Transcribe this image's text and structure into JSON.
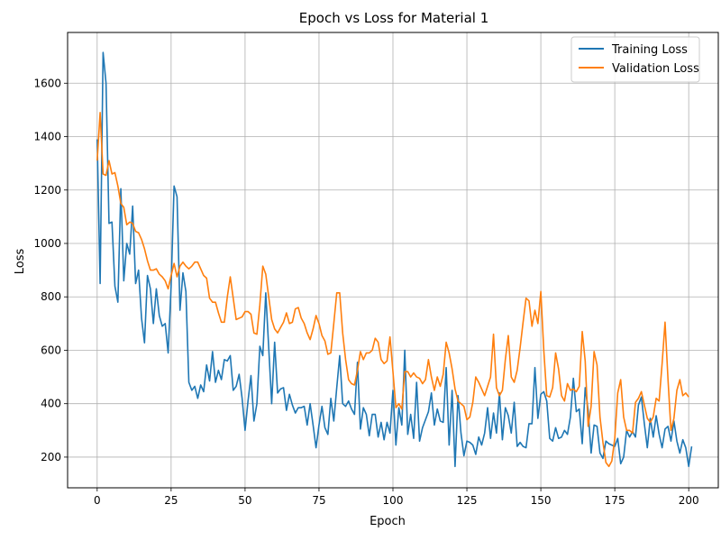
{
  "chart_data": {
    "type": "line",
    "title": "Epoch vs Loss for Material 1",
    "xlabel": "Epoch",
    "ylabel": "Loss",
    "xlim": [
      -10,
      210
    ],
    "ylim": [
      85,
      1790
    ],
    "xticks": [
      0,
      25,
      50,
      75,
      100,
      125,
      150,
      175,
      200
    ],
    "yticks": [
      200,
      400,
      600,
      800,
      1000,
      1200,
      1400,
      1600
    ],
    "grid": true,
    "legend": "top-right",
    "series": [
      {
        "name": "Training Loss",
        "color": "#1f77b4",
        "values": [
          1390,
          850,
          1715,
          1600,
          1075,
          1080,
          840,
          780,
          1205,
          860,
          1000,
          960,
          1140,
          850,
          900,
          720,
          628,
          880,
          830,
          700,
          830,
          730,
          690,
          700,
          590,
          840,
          1215,
          1175,
          750,
          890,
          820,
          480,
          450,
          465,
          420,
          470,
          445,
          545,
          485,
          595,
          480,
          525,
          490,
          565,
          560,
          580,
          450,
          465,
          510,
          420,
          300,
          410,
          505,
          335,
          400,
          615,
          580,
          815,
          610,
          400,
          630,
          440,
          455,
          460,
          375,
          435,
          395,
          365,
          385,
          385,
          390,
          320,
          400,
          320,
          235,
          320,
          390,
          310,
          285,
          420,
          335,
          460,
          580,
          400,
          390,
          410,
          380,
          360,
          555,
          305,
          385,
          360,
          280,
          360,
          360,
          275,
          330,
          265,
          330,
          290,
          450,
          245,
          385,
          320,
          600,
          285,
          360,
          270,
          480,
          260,
          310,
          340,
          370,
          440,
          320,
          380,
          335,
          330,
          535,
          245,
          450,
          165,
          430,
          290,
          205,
          260,
          255,
          245,
          210,
          275,
          245,
          290,
          385,
          270,
          365,
          290,
          440,
          265,
          385,
          355,
          290,
          405,
          240,
          255,
          240,
          235,
          325,
          325,
          535,
          345,
          435,
          445,
          410,
          270,
          260,
          310,
          270,
          275,
          300,
          285,
          350,
          495,
          370,
          380,
          250,
          460,
          375,
          215,
          320,
          315,
          215,
          195,
          260,
          250,
          245,
          240,
          270,
          175,
          200,
          300,
          275,
          295,
          275,
          395,
          425,
          325,
          235,
          345,
          275,
          355,
          285,
          235,
          305,
          315,
          260,
          335,
          260,
          215,
          265,
          235,
          165,
          240
        ]
      },
      {
        "name": "Validation Loss",
        "color": "#ff7f0e",
        "values": [
          1310,
          1490,
          1260,
          1255,
          1310,
          1260,
          1265,
          1215,
          1150,
          1135,
          1070,
          1080,
          1075,
          1045,
          1040,
          1015,
          980,
          935,
          900,
          900,
          905,
          885,
          875,
          860,
          830,
          880,
          925,
          875,
          915,
          930,
          915,
          905,
          915,
          930,
          930,
          905,
          880,
          870,
          795,
          780,
          780,
          740,
          705,
          705,
          800,
          875,
          795,
          715,
          720,
          725,
          745,
          745,
          735,
          665,
          660,
          770,
          915,
          885,
          800,
          715,
          680,
          665,
          685,
          705,
          740,
          700,
          705,
          755,
          760,
          720,
          700,
          665,
          640,
          680,
          730,
          700,
          655,
          635,
          585,
          590,
          700,
          815,
          815,
          665,
          565,
          490,
          475,
          470,
          525,
          595,
          565,
          590,
          590,
          600,
          645,
          630,
          565,
          550,
          560,
          650,
          520,
          385,
          400,
          380,
          520,
          520,
          500,
          515,
          500,
          495,
          475,
          490,
          565,
          500,
          450,
          500,
          465,
          510,
          630,
          590,
          530,
          455,
          410,
          400,
          390,
          340,
          350,
          405,
          500,
          480,
          455,
          430,
          465,
          500,
          660,
          460,
          430,
          450,
          565,
          655,
          500,
          480,
          525,
          610,
          705,
          795,
          785,
          690,
          750,
          700,
          820,
          600,
          430,
          425,
          460,
          590,
          530,
          430,
          410,
          475,
          450,
          455,
          445,
          465,
          670,
          560,
          315,
          390,
          595,
          545,
          350,
          255,
          180,
          165,
          185,
          270,
          440,
          490,
          350,
          300,
          300,
          290,
          405,
          420,
          445,
          395,
          345,
          330,
          350,
          420,
          410,
          550,
          705,
          490,
          300,
          345,
          450,
          490,
          430,
          440,
          425
        ]
      }
    ]
  }
}
